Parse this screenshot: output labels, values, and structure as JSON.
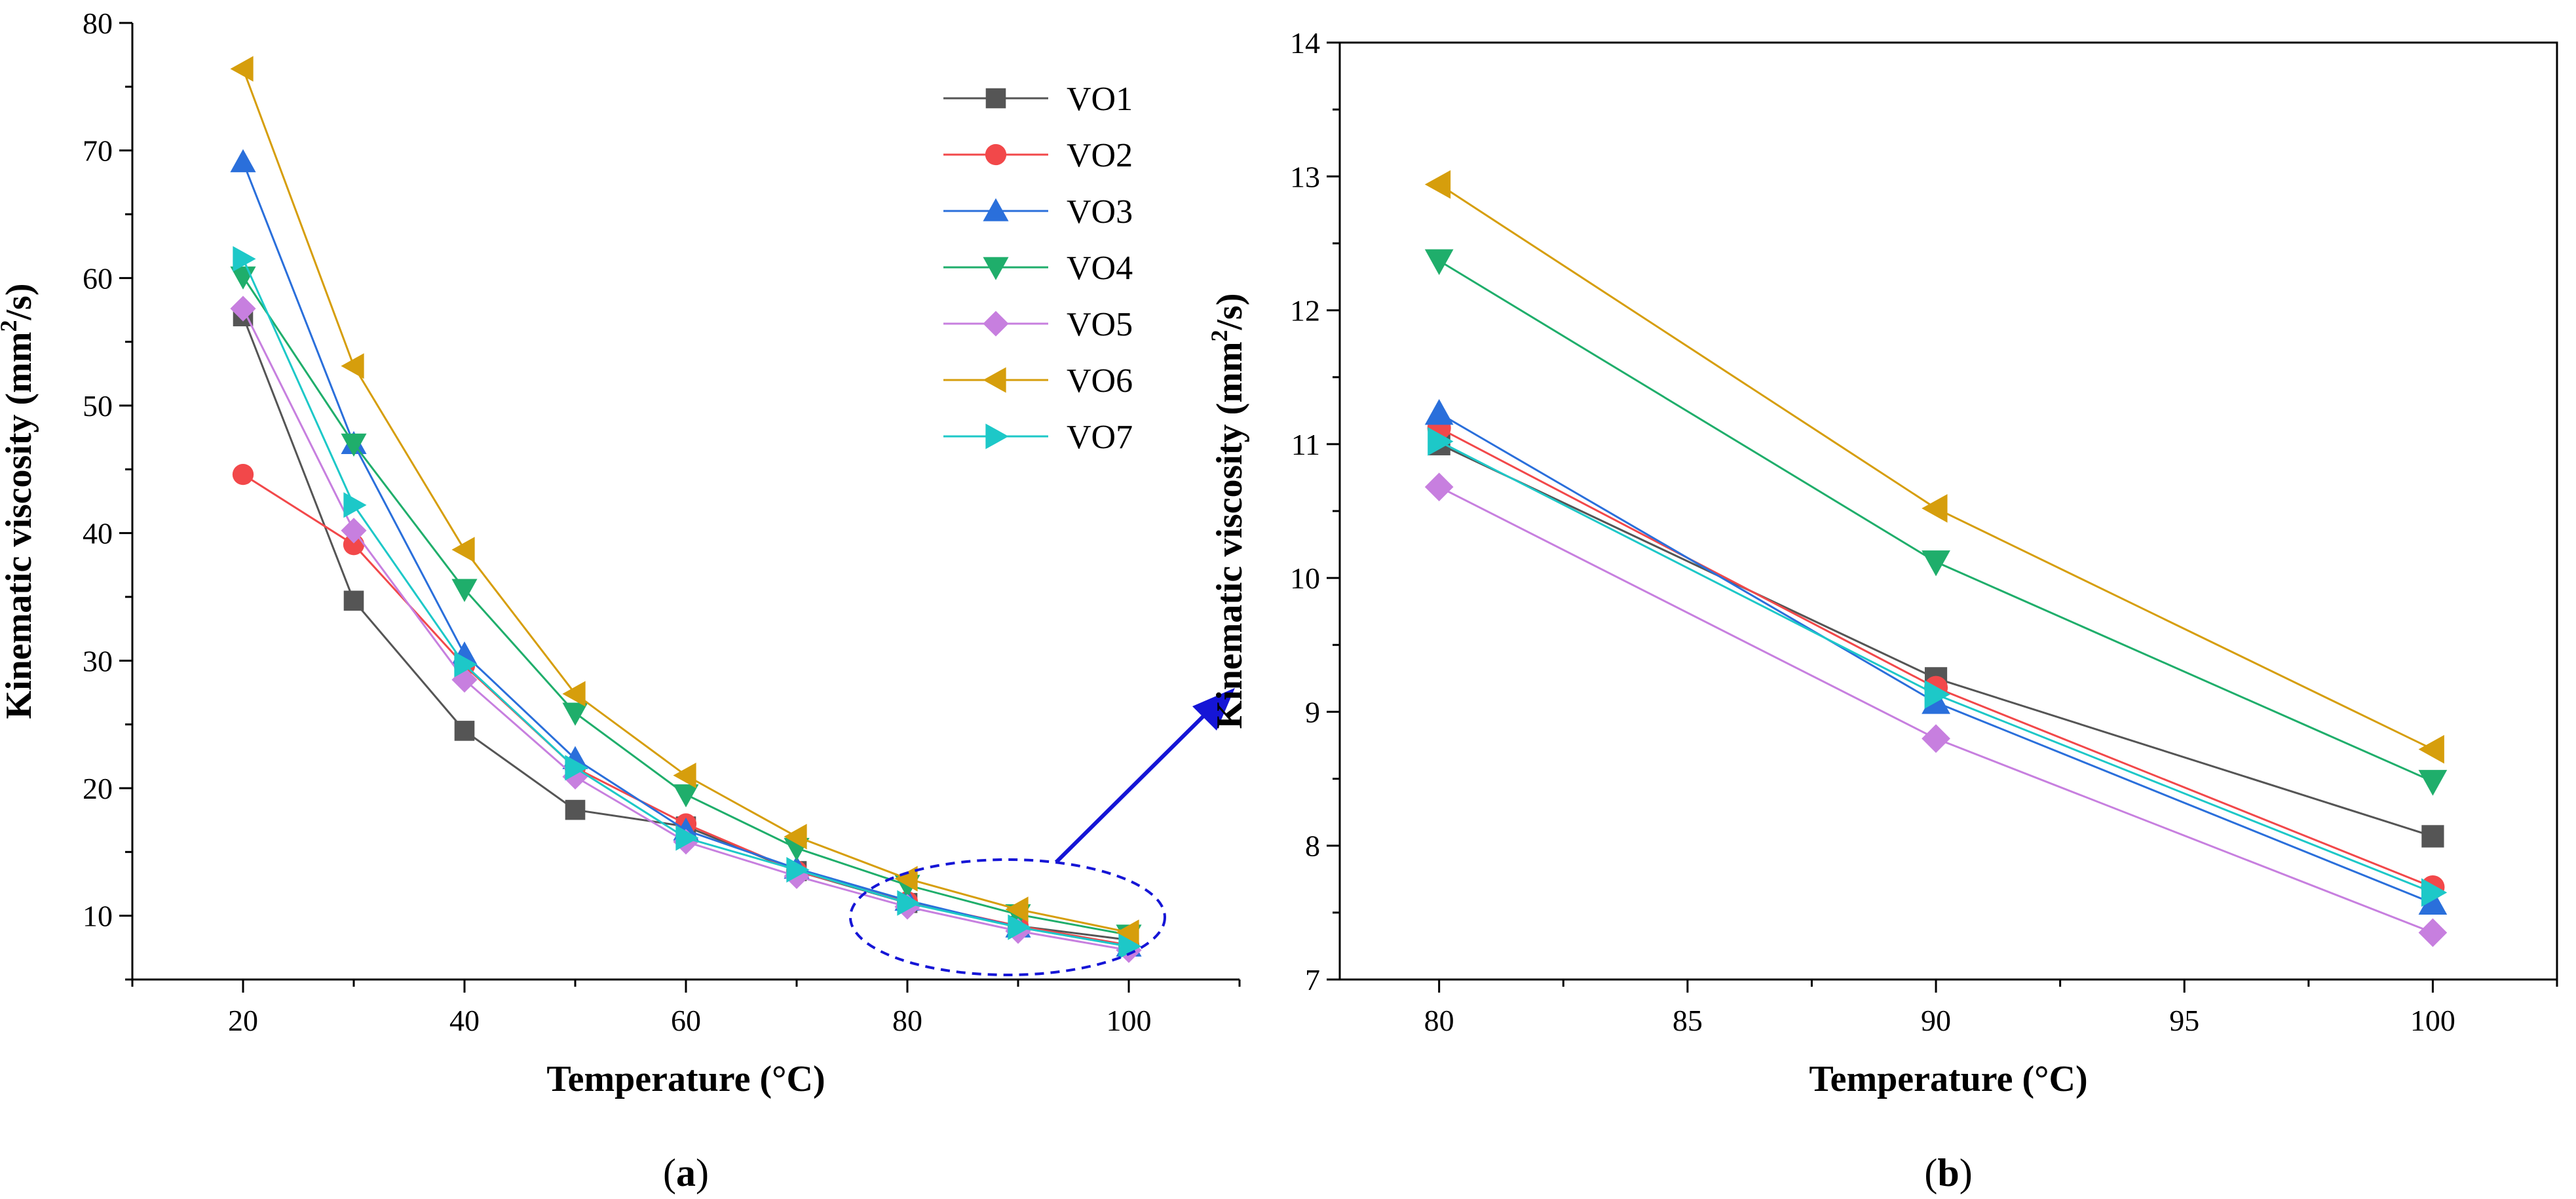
{
  "chart_data": [
    {
      "type": "line",
      "panel": "a",
      "caption_letter": "a",
      "xlabel": "Temperature (°C)",
      "ylabel_main": "Kinematic viscosity (mm",
      "ylabel_sup": "2",
      "ylabel_end": "/s)",
      "xlim": [
        10,
        110
      ],
      "ylim": [
        5,
        80
      ],
      "xticks": [
        20,
        40,
        60,
        80,
        100
      ],
      "yticks": [
        10,
        20,
        30,
        40,
        50,
        60,
        70,
        80
      ],
      "x": [
        20,
        30,
        40,
        50,
        60,
        70,
        80,
        90,
        100
      ],
      "legend_position": "top-right",
      "series": [
        {
          "name": "VO1",
          "color": "#555555",
          "marker": "square",
          "values": [
            57.0,
            34.7,
            24.5,
            18.3,
            17.0,
            13.5,
            11.0,
            9.2,
            8.1
          ]
        },
        {
          "name": "VO2",
          "color": "#f2484a",
          "marker": "circle",
          "values": [
            44.6,
            39.1,
            29.6,
            21.6,
            17.2,
            13.5,
            11.1,
            9.2,
            7.7
          ]
        },
        {
          "name": "VO3",
          "color": "#2a6fdb",
          "marker": "triangle-up",
          "values": [
            69.1,
            47.0,
            30.5,
            22.3,
            16.7,
            13.7,
            11.2,
            9.1,
            7.6
          ]
        },
        {
          "name": "VO4",
          "color": "#1fae6b",
          "marker": "triangle-down",
          "values": [
            60.1,
            47.0,
            35.6,
            25.9,
            19.5,
            15.3,
            12.4,
            10.1,
            8.5
          ]
        },
        {
          "name": "VO5",
          "color": "#c77fdf",
          "marker": "diamond",
          "values": [
            57.6,
            40.2,
            28.5,
            20.9,
            15.8,
            13.1,
            10.7,
            8.8,
            7.3
          ]
        },
        {
          "name": "VO6",
          "color": "#d69e0c",
          "marker": "triangle-left",
          "values": [
            76.4,
            53.1,
            38.7,
            27.4,
            21.0,
            16.2,
            12.9,
            10.5,
            8.7
          ]
        },
        {
          "name": "VO7",
          "color": "#1dc8c8",
          "marker": "triangle-right",
          "values": [
            61.5,
            42.2,
            29.7,
            21.6,
            16.1,
            13.6,
            11.0,
            9.1,
            7.6
          ]
        }
      ],
      "annotation": "dashed ellipse around 80–100 °C with arrow pointing to panel (b)"
    },
    {
      "type": "line",
      "panel": "b",
      "caption_letter": "b",
      "xlabel": "Temperature (°C)",
      "ylabel_main": "Kinematic viscosity (mm",
      "ylabel_sup": "2",
      "ylabel_end": "/s)",
      "xlim": [
        78,
        102.5
      ],
      "ylim": [
        7,
        14
      ],
      "xticks": [
        80,
        85,
        90,
        95,
        100
      ],
      "yticks": [
        7,
        8,
        9,
        10,
        11,
        12,
        13,
        14
      ],
      "x": [
        80,
        90,
        100
      ],
      "series": [
        {
          "name": "VO1",
          "color": "#555555",
          "marker": "square",
          "values": [
            11.0,
            9.25,
            8.07
          ]
        },
        {
          "name": "VO2",
          "color": "#f2484a",
          "marker": "circle",
          "values": [
            11.12,
            9.18,
            7.69
          ]
        },
        {
          "name": "VO3",
          "color": "#2a6fdb",
          "marker": "triangle-up",
          "values": [
            11.23,
            9.07,
            7.57
          ]
        },
        {
          "name": "VO4",
          "color": "#1fae6b",
          "marker": "triangle-down",
          "values": [
            12.37,
            10.12,
            8.48
          ]
        },
        {
          "name": "VO5",
          "color": "#c77fdf",
          "marker": "diamond",
          "values": [
            10.68,
            8.8,
            7.35
          ]
        },
        {
          "name": "VO6",
          "color": "#d69e0c",
          "marker": "triangle-left",
          "values": [
            12.94,
            10.52,
            8.72
          ]
        },
        {
          "name": "VO7",
          "color": "#1dc8c8",
          "marker": "triangle-right",
          "values": [
            11.02,
            9.13,
            7.65
          ]
        }
      ]
    }
  ]
}
